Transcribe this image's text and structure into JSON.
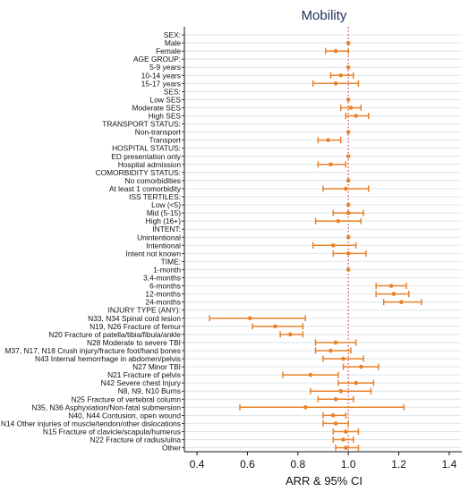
{
  "chart_data": {
    "type": "forest",
    "title": "Mobility",
    "xlabel": "ARR & 95% CI",
    "xlim": [
      0.35,
      1.45
    ],
    "xticks": [
      0.4,
      0.6,
      0.8,
      1.0,
      1.2,
      1.4
    ],
    "xtick_labels": [
      "0.4",
      "0.6",
      "0.8",
      "1.0",
      "1.2",
      "1.4"
    ],
    "reference_line": 1.0,
    "colors": {
      "point": "#e8822a",
      "reference": "#d12a2a",
      "grid": "#dce8e8",
      "title": "#1f2d5a"
    },
    "rows": [
      {
        "label": "SEX:",
        "est": null,
        "lo": null,
        "hi": null
      },
      {
        "label": "Male",
        "est": 1.0,
        "lo": null,
        "hi": null
      },
      {
        "label": "Female",
        "est": 0.95,
        "lo": 0.91,
        "hi": 1.0
      },
      {
        "label": "AGE GROUP:",
        "est": null,
        "lo": null,
        "hi": null
      },
      {
        "label": "5-9 years",
        "est": 1.0,
        "lo": null,
        "hi": null
      },
      {
        "label": "10-14 years",
        "est": 0.97,
        "lo": 0.93,
        "hi": 1.02
      },
      {
        "label": "15-17 years",
        "est": 0.95,
        "lo": 0.86,
        "hi": 1.04
      },
      {
        "label": "SES:",
        "est": null,
        "lo": null,
        "hi": null
      },
      {
        "label": "Low SES",
        "est": 1.0,
        "lo": null,
        "hi": null
      },
      {
        "label": "Moderate SES",
        "est": 1.01,
        "lo": 0.97,
        "hi": 1.05
      },
      {
        "label": "High SES",
        "est": 1.03,
        "lo": 0.99,
        "hi": 1.08
      },
      {
        "label": "TRANSPORT STATUS:",
        "est": null,
        "lo": null,
        "hi": null
      },
      {
        "label": "Non-transport",
        "est": 1.0,
        "lo": null,
        "hi": null
      },
      {
        "label": "Transport",
        "est": 0.92,
        "lo": 0.88,
        "hi": 0.97
      },
      {
        "label": "HOSPITAL STATUS:",
        "est": null,
        "lo": null,
        "hi": null
      },
      {
        "label": "ED presentation only",
        "est": 1.0,
        "lo": null,
        "hi": null
      },
      {
        "label": "Hospital admission",
        "est": 0.93,
        "lo": 0.88,
        "hi": 0.99
      },
      {
        "label": "COMORBIDITY STATUS:",
        "est": null,
        "lo": null,
        "hi": null
      },
      {
        "label": "No comorbidities",
        "est": 1.0,
        "lo": null,
        "hi": null
      },
      {
        "label": "At least 1 comorbidity",
        "est": 0.99,
        "lo": 0.9,
        "hi": 1.08
      },
      {
        "label": "ISS TERTILES:",
        "est": null,
        "lo": null,
        "hi": null
      },
      {
        "label": "Low (<5)",
        "est": 1.0,
        "lo": null,
        "hi": null
      },
      {
        "label": "Mid (5-15)",
        "est": 1.0,
        "lo": 0.94,
        "hi": 1.06
      },
      {
        "label": "High (16+)",
        "est": 0.96,
        "lo": 0.87,
        "hi": 1.05
      },
      {
        "label": "INTENT:",
        "est": null,
        "lo": null,
        "hi": null
      },
      {
        "label": "Unintentional",
        "est": 1.0,
        "lo": null,
        "hi": null
      },
      {
        "label": "Intentional",
        "est": 0.94,
        "lo": 0.86,
        "hi": 1.03
      },
      {
        "label": "Intent not known",
        "est": 1.0,
        "lo": 0.94,
        "hi": 1.07
      },
      {
        "label": "TIME:",
        "est": null,
        "lo": null,
        "hi": null
      },
      {
        "label": "1-month",
        "est": 1.0,
        "lo": null,
        "hi": null
      },
      {
        "label": "3,4-months",
        "est": null,
        "lo": null,
        "hi": null
      },
      {
        "label": "6-months",
        "est": 1.17,
        "lo": 1.11,
        "hi": 1.23
      },
      {
        "label": "12-months",
        "est": 1.18,
        "lo": 1.11,
        "hi": 1.24
      },
      {
        "label": "24-months",
        "est": 1.21,
        "lo": 1.14,
        "hi": 1.29
      },
      {
        "label": "INJURY TYPE (ANY):",
        "est": null,
        "lo": null,
        "hi": null
      },
      {
        "label": "N33, N34 Spinal cord lesion",
        "est": 0.61,
        "lo": 0.45,
        "hi": 0.83
      },
      {
        "label": "N19, N26 Fracture of femur",
        "est": 0.71,
        "lo": 0.62,
        "hi": 0.82
      },
      {
        "label": "N20 Fracture of patella/tibia/fibula/ankle",
        "est": 0.77,
        "lo": 0.73,
        "hi": 0.82
      },
      {
        "label": "N28 Moderate to severe TBI",
        "est": 0.95,
        "lo": 0.87,
        "hi": 1.03
      },
      {
        "label": "M37, N17, N18 Crush injury/fracture foot/hand bones",
        "est": 0.93,
        "lo": 0.87,
        "hi": 1.01
      },
      {
        "label": "N43 Internal hemorrhage in abdomen/pelvis",
        "est": 0.98,
        "lo": 0.9,
        "hi": 1.06
      },
      {
        "label": "N27 Minor TBI",
        "est": 1.05,
        "lo": 0.98,
        "hi": 1.12
      },
      {
        "label": "N21 Fracture of pelvis",
        "est": 0.85,
        "lo": 0.74,
        "hi": 0.96
      },
      {
        "label": "N42 Severe chest Injury",
        "est": 1.03,
        "lo": 0.96,
        "hi": 1.1
      },
      {
        "label": "N8, N9, N10 Burns",
        "est": 0.97,
        "lo": 0.85,
        "hi": 1.09
      },
      {
        "label": "N25 Fracture of vertebral column",
        "est": 0.95,
        "lo": 0.88,
        "hi": 1.02
      },
      {
        "label": "N35, N36 Asphyxiation/Non-fatal submersion",
        "est": 0.83,
        "lo": 0.57,
        "hi": 1.22
      },
      {
        "label": "N40, N44 Contusion, open wound",
        "est": 0.94,
        "lo": 0.9,
        "hi": 0.99
      },
      {
        "label": "N14 Other injuries of muscle/tendon/other dislocations",
        "est": 0.95,
        "lo": 0.9,
        "hi": 1.0
      },
      {
        "label": "N15 Fracture of clavicle/scapula/humerus",
        "est": 0.99,
        "lo": 0.94,
        "hi": 1.04
      },
      {
        "label": "N22 Fracture of radius/ulna",
        "est": 0.98,
        "lo": 0.94,
        "hi": 1.02
      },
      {
        "label": "Other",
        "est": 0.99,
        "lo": 0.95,
        "hi": 1.04
      }
    ]
  }
}
